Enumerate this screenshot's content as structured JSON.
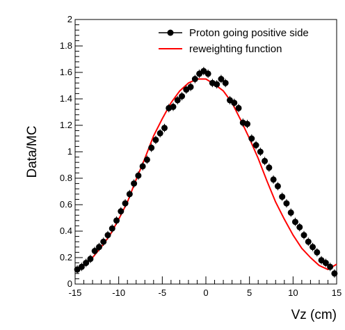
{
  "chart_data": {
    "type": "scatter",
    "title": "",
    "xlabel": "Vz (cm)",
    "ylabel": "Data/MC",
    "xlim": [
      -15,
      15
    ],
    "ylim": [
      0,
      2
    ],
    "x_ticks": [
      "-15",
      "-10",
      "-5",
      "0",
      "5",
      "10",
      "15"
    ],
    "y_ticks": [
      "0",
      "0.2",
      "0.4",
      "0.6",
      "0.8",
      "1",
      "1.2",
      "1.4",
      "1.6",
      "1.8",
      "2"
    ],
    "grid": false,
    "legend_position": "top-right",
    "series": [
      {
        "name": "Proton going positive side",
        "kind": "points",
        "color": "#000000",
        "points": [
          [
            -14.75,
            0.11
          ],
          [
            -14.25,
            0.13
          ],
          [
            -13.75,
            0.16
          ],
          [
            -13.25,
            0.19
          ],
          [
            -12.75,
            0.25
          ],
          [
            -12.25,
            0.28
          ],
          [
            -11.75,
            0.32
          ],
          [
            -11.25,
            0.37
          ],
          [
            -10.75,
            0.42
          ],
          [
            -10.25,
            0.48
          ],
          [
            -9.75,
            0.55
          ],
          [
            -9.25,
            0.61
          ],
          [
            -8.75,
            0.68
          ],
          [
            -8.25,
            0.76
          ],
          [
            -7.75,
            0.82
          ],
          [
            -7.25,
            0.89
          ],
          [
            -6.75,
            0.94
          ],
          [
            -6.25,
            1.03
          ],
          [
            -5.75,
            1.09
          ],
          [
            -5.25,
            1.14
          ],
          [
            -4.75,
            1.18
          ],
          [
            -4.25,
            1.33
          ],
          [
            -3.75,
            1.34
          ],
          [
            -3.25,
            1.39
          ],
          [
            -2.75,
            1.42
          ],
          [
            -2.25,
            1.47
          ],
          [
            -1.75,
            1.49
          ],
          [
            -1.25,
            1.55
          ],
          [
            -0.75,
            1.59
          ],
          [
            -0.25,
            1.61
          ],
          [
            0.25,
            1.59
          ],
          [
            0.75,
            1.52
          ],
          [
            1.25,
            1.51
          ],
          [
            1.75,
            1.55
          ],
          [
            2.25,
            1.52
          ],
          [
            2.75,
            1.39
          ],
          [
            3.25,
            1.37
          ],
          [
            3.75,
            1.33
          ],
          [
            4.25,
            1.22
          ],
          [
            4.75,
            1.21
          ],
          [
            5.25,
            1.1
          ],
          [
            5.75,
            1.05
          ],
          [
            6.25,
            1.0
          ],
          [
            6.75,
            0.93
          ],
          [
            7.25,
            0.88
          ],
          [
            7.75,
            0.79
          ],
          [
            8.25,
            0.74
          ],
          [
            8.75,
            0.66
          ],
          [
            9.25,
            0.61
          ],
          [
            9.75,
            0.54
          ],
          [
            10.25,
            0.47
          ],
          [
            10.75,
            0.43
          ],
          [
            11.25,
            0.37
          ],
          [
            11.75,
            0.32
          ],
          [
            12.25,
            0.28
          ],
          [
            12.75,
            0.24
          ],
          [
            13.25,
            0.18
          ],
          [
            13.75,
            0.16
          ],
          [
            14.25,
            0.13
          ],
          [
            14.75,
            0.08
          ]
        ]
      },
      {
        "name": "reweighting function",
        "kind": "line",
        "color": "#ff0000",
        "points": [
          [
            -15,
            0.11
          ],
          [
            -14,
            0.14
          ],
          [
            -13,
            0.2
          ],
          [
            -12,
            0.28
          ],
          [
            -11,
            0.37
          ],
          [
            -10,
            0.49
          ],
          [
            -9,
            0.62
          ],
          [
            -8,
            0.79
          ],
          [
            -7,
            0.95
          ],
          [
            -6,
            1.12
          ],
          [
            -5,
            1.25
          ],
          [
            -4,
            1.37
          ],
          [
            -3,
            1.46
          ],
          [
            -2,
            1.52
          ],
          [
            -1,
            1.55
          ],
          [
            0,
            1.55
          ],
          [
            1,
            1.51
          ],
          [
            2,
            1.46
          ],
          [
            3,
            1.37
          ],
          [
            4,
            1.24
          ],
          [
            5,
            1.1
          ],
          [
            6,
            0.95
          ],
          [
            7,
            0.78
          ],
          [
            8,
            0.62
          ],
          [
            9,
            0.49
          ],
          [
            10,
            0.37
          ],
          [
            11,
            0.27
          ],
          [
            12,
            0.2
          ],
          [
            13,
            0.14
          ],
          [
            14,
            0.11
          ],
          [
            15,
            0.15
          ]
        ]
      }
    ]
  }
}
